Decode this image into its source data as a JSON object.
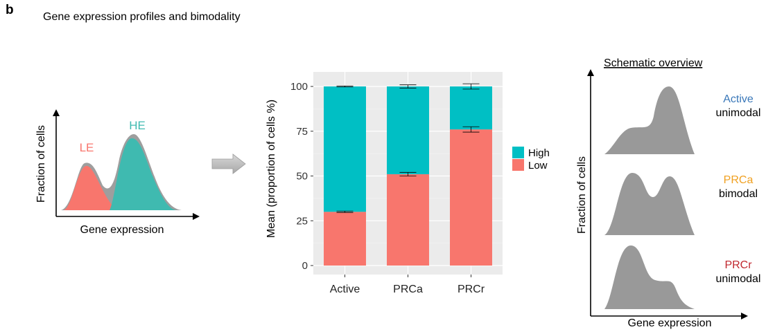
{
  "panel": {
    "letter": "b",
    "title": "Gene expression profiles and bimodality"
  },
  "left_panel": {
    "ylabel": "Fraction of cells",
    "xlabel": "Gene expression",
    "le_label": "LE",
    "he_label": "HE",
    "colors": {
      "le": "#f8766d",
      "he": "#3fbab0",
      "envelope": "#9e9e9e"
    }
  },
  "arrow": {
    "color": "#bdbdbd"
  },
  "chart_data": {
    "type": "bar",
    "stacked": true,
    "categories": [
      "Active",
      "PRCa",
      "PRCr"
    ],
    "series": [
      {
        "name": "Low",
        "values": [
          30,
          51,
          76
        ],
        "color": "#f8766d"
      },
      {
        "name": "High",
        "values": [
          70,
          49,
          24
        ],
        "color": "#00bfc4"
      }
    ],
    "error_bars": {
      "low_top": [
        30,
        51,
        76
      ],
      "low_err": [
        0.4,
        1.0,
        1.5
      ],
      "total": [
        100,
        100,
        100
      ],
      "total_err": [
        0.3,
        0.9,
        1.5
      ]
    },
    "ylabel": "Mean (proportion of cells %)",
    "xlabel": "",
    "ylim": [
      0,
      105
    ],
    "yticks": [
      0,
      25,
      50,
      75,
      100
    ],
    "grid": true,
    "panel_background": "#ebebeb",
    "legend": {
      "position": "right",
      "entries": [
        "High",
        "Low"
      ]
    }
  },
  "schematic": {
    "title": "Schematic overview",
    "ylabel": "Fraction of cells",
    "xlabel": "Gene expression",
    "fill": "#999999",
    "rows": [
      {
        "name": "Active",
        "mode": "unimodal",
        "color": "#3a78b9"
      },
      {
        "name": "PRCa",
        "mode": "bimodal",
        "color": "#f0a020"
      },
      {
        "name": "PRCr",
        "mode": "unimodal",
        "color": "#c0282e"
      }
    ]
  }
}
